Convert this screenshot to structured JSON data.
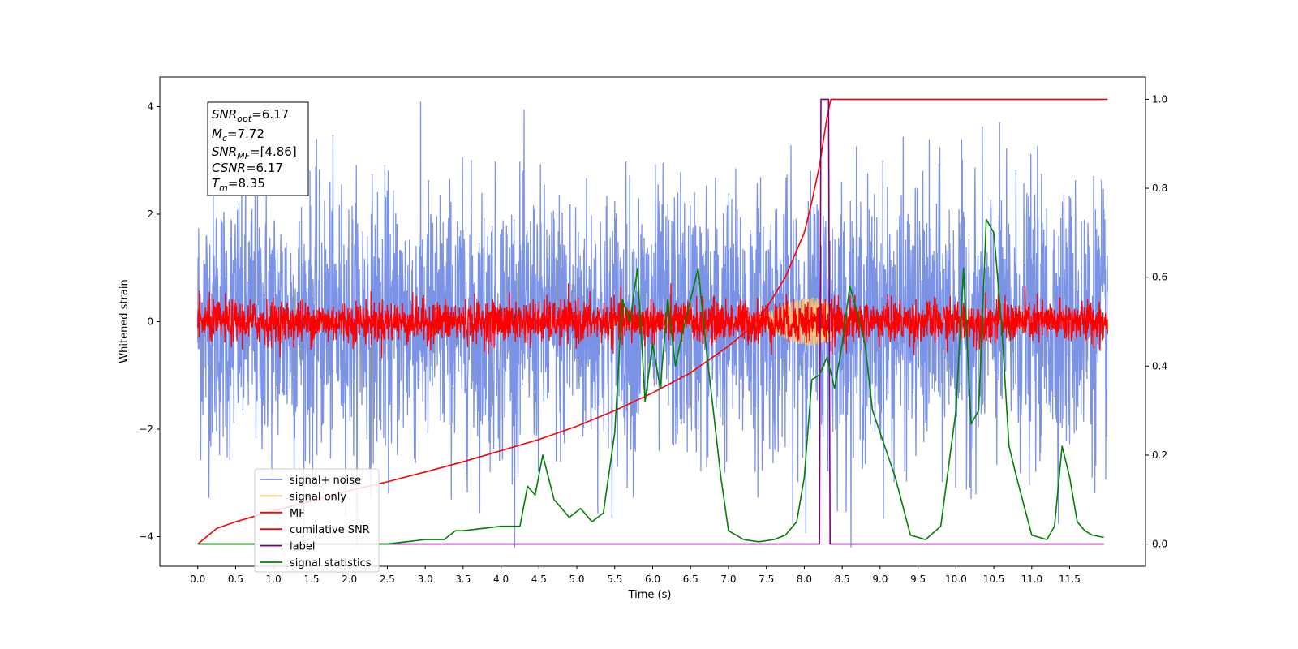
{
  "chart_data": {
    "type": "line",
    "xlabel": "Time (s)",
    "ylabel": "Whitened strain",
    "xlim": [
      -0.5,
      12.5
    ],
    "ylim": [
      -4.55,
      4.55
    ],
    "y2lim": [
      -0.05,
      1.05
    ],
    "x_ticks": [
      0.0,
      0.5,
      1.0,
      1.5,
      2.0,
      2.5,
      3.0,
      3.5,
      4.0,
      4.5,
      5.0,
      5.5,
      6.0,
      6.5,
      7.0,
      7.5,
      8.0,
      8.5,
      9.0,
      9.5,
      10.0,
      10.5,
      11.0,
      11.5
    ],
    "x_tick_labels": [
      "0.0",
      "0.5",
      "1.0",
      "1.5",
      "2.0",
      "2.5",
      "3.0",
      "3.5",
      "4.0",
      "4.5",
      "5.0",
      "5.5",
      "6.0",
      "6.5",
      "7.0",
      "7.5",
      "8.0",
      "8.5",
      "9.0",
      "9.5",
      "10.0",
      "10.5",
      "11.0",
      "11.5"
    ],
    "y_ticks": [
      -4,
      -2,
      0,
      2,
      4
    ],
    "y_tick_labels": [
      "−4",
      "−2",
      "0",
      "2",
      "4"
    ],
    "y2_ticks": [
      0.0,
      0.2,
      0.4,
      0.6,
      0.8,
      1.0
    ],
    "y2_tick_labels": [
      "0.0",
      "0.2",
      "0.4",
      "0.6",
      "0.8",
      "1.0"
    ],
    "grid": false,
    "legend_position": "lower-left",
    "series": [
      {
        "name": "signal+ noise",
        "axis": "left",
        "color": "#7b93e6",
        "noise_sigma": 1.25,
        "time_range": [
          0.0,
          12.0
        ]
      },
      {
        "name": "signal only",
        "axis": "left",
        "color": "#ffc36e",
        "chirp_end": 8.35,
        "time_range": [
          0.0,
          12.0
        ]
      },
      {
        "name": "MF",
        "axis": "left",
        "color": "#ff0000",
        "noise_sigma": 0.2,
        "time_range": [
          0.0,
          12.0
        ]
      },
      {
        "name": "cumilative SNR",
        "axis": "right",
        "color": "#ff0000",
        "x": [
          0.0,
          0.25,
          0.5,
          1.0,
          1.5,
          2.0,
          2.5,
          3.0,
          3.5,
          4.0,
          4.5,
          5.0,
          5.5,
          6.0,
          6.5,
          7.0,
          7.25,
          7.5,
          7.75,
          8.0,
          8.1,
          8.2,
          8.3,
          8.35,
          12.0
        ],
        "y": [
          0.0,
          0.035,
          0.05,
          0.075,
          0.097,
          0.12,
          0.14,
          0.162,
          0.185,
          0.21,
          0.235,
          0.265,
          0.3,
          0.34,
          0.385,
          0.445,
          0.48,
          0.53,
          0.6,
          0.7,
          0.77,
          0.85,
          0.96,
          1.0,
          1.0
        ]
      },
      {
        "name": "label",
        "axis": "right",
        "color": "#800080",
        "x": [
          0.0,
          8.2,
          8.22,
          8.32,
          8.34,
          11.95
        ],
        "y": [
          0.0,
          0.0,
          1.0,
          1.0,
          0.0,
          0.0
        ]
      },
      {
        "name": "signal statistics",
        "axis": "right",
        "color": "#008000",
        "x": [
          0.0,
          0.5,
          1.0,
          1.5,
          2.0,
          2.5,
          2.75,
          3.0,
          3.25,
          3.4,
          3.5,
          3.75,
          4.0,
          4.25,
          4.35,
          4.45,
          4.55,
          4.7,
          4.9,
          5.05,
          5.2,
          5.35,
          5.5,
          5.6,
          5.7,
          5.8,
          5.9,
          6.0,
          6.1,
          6.2,
          6.3,
          6.4,
          6.5,
          6.6,
          6.7,
          6.8,
          6.9,
          7.0,
          7.2,
          7.4,
          7.6,
          7.75,
          7.9,
          8.0,
          8.1,
          8.2,
          8.3,
          8.4,
          8.5,
          8.6,
          8.7,
          8.8,
          8.9,
          9.0,
          9.2,
          9.4,
          9.6,
          9.8,
          10.0,
          10.1,
          10.2,
          10.3,
          10.4,
          10.5,
          10.6,
          10.7,
          10.8,
          11.0,
          11.2,
          11.3,
          11.4,
          11.5,
          11.6,
          11.7,
          11.8,
          11.95
        ],
        "y": [
          0.0,
          0.0,
          0.0,
          0.0,
          0.0,
          0.0,
          0.005,
          0.01,
          0.01,
          0.03,
          0.03,
          0.035,
          0.04,
          0.04,
          0.13,
          0.11,
          0.2,
          0.1,
          0.06,
          0.08,
          0.05,
          0.07,
          0.25,
          0.55,
          0.5,
          0.62,
          0.32,
          0.45,
          0.35,
          0.55,
          0.4,
          0.48,
          0.55,
          0.62,
          0.45,
          0.3,
          0.15,
          0.03,
          0.01,
          0.005,
          0.01,
          0.02,
          0.05,
          0.15,
          0.37,
          0.38,
          0.42,
          0.35,
          0.45,
          0.58,
          0.52,
          0.45,
          0.3,
          0.25,
          0.15,
          0.02,
          0.01,
          0.04,
          0.3,
          0.62,
          0.27,
          0.3,
          0.73,
          0.7,
          0.5,
          0.22,
          0.15,
          0.02,
          0.01,
          0.04,
          0.22,
          0.15,
          0.05,
          0.03,
          0.02,
          0.015
        ]
      }
    ],
    "info_box": {
      "snr_opt": "=6.17",
      "mc": "=7.72",
      "snr_mf": "=[4.86]",
      "csnr": "=6.17",
      "tm": "=8.35"
    }
  }
}
